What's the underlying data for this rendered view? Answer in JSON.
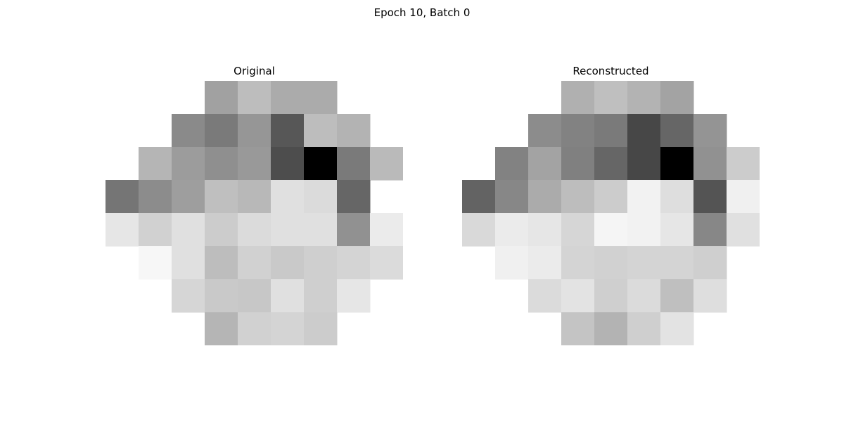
{
  "figure": {
    "suptitle": "Epoch 10, Batch 0"
  },
  "chart_data": [
    {
      "type": "heatmap",
      "title": "Original",
      "colormap": "gray_r",
      "cmap_colors": [
        "#ffffff",
        "#000000"
      ],
      "vmin": 0,
      "vmax": 1,
      "shape": [
        8,
        9
      ],
      "values": [
        [
          null,
          null,
          null,
          0.37,
          0.26,
          0.33,
          0.33,
          null,
          null
        ],
        [
          null,
          null,
          0.46,
          0.52,
          0.41,
          0.66,
          0.26,
          0.3,
          null
        ],
        [
          null,
          0.29,
          0.39,
          0.44,
          0.4,
          0.7,
          1.0,
          0.52,
          0.27
        ],
        [
          0.54,
          0.45,
          0.38,
          0.25,
          0.28,
          0.12,
          0.14,
          0.6,
          null
        ],
        [
          0.1,
          0.18,
          0.12,
          0.2,
          0.14,
          0.12,
          0.12,
          0.43,
          0.08
        ],
        [
          null,
          0.03,
          0.12,
          0.26,
          0.18,
          0.21,
          0.19,
          0.17,
          0.14
        ],
        [
          null,
          null,
          0.16,
          0.21,
          0.22,
          0.12,
          0.19,
          0.1,
          null
        ],
        [
          null,
          null,
          null,
          0.29,
          0.18,
          0.17,
          0.2,
          null,
          null
        ]
      ]
    },
    {
      "type": "heatmap",
      "title": "Reconstructed",
      "colormap": "gray_r",
      "cmap_colors": [
        "#ffffff",
        "#000000"
      ],
      "vmin": 0,
      "vmax": 1,
      "shape": [
        8,
        9
      ],
      "values": [
        [
          null,
          null,
          null,
          0.31,
          0.25,
          0.3,
          0.36,
          null,
          null
        ],
        [
          null,
          null,
          0.45,
          0.49,
          0.52,
          0.72,
          0.6,
          0.42,
          null
        ],
        [
          null,
          0.49,
          0.36,
          0.5,
          0.6,
          0.72,
          1.0,
          0.43,
          0.2
        ],
        [
          0.61,
          0.47,
          0.33,
          0.26,
          0.2,
          0.05,
          0.13,
          0.67,
          0.06
        ],
        [
          0.15,
          0.08,
          0.1,
          0.16,
          0.04,
          0.05,
          0.1,
          0.47,
          0.12
        ],
        [
          null,
          0.06,
          0.08,
          0.17,
          0.18,
          0.17,
          0.17,
          0.19,
          null
        ],
        [
          null,
          null,
          0.14,
          0.11,
          0.19,
          0.14,
          0.25,
          0.13,
          null
        ],
        [
          null,
          null,
          null,
          0.23,
          0.3,
          0.19,
          0.11,
          null,
          null
        ]
      ]
    }
  ]
}
